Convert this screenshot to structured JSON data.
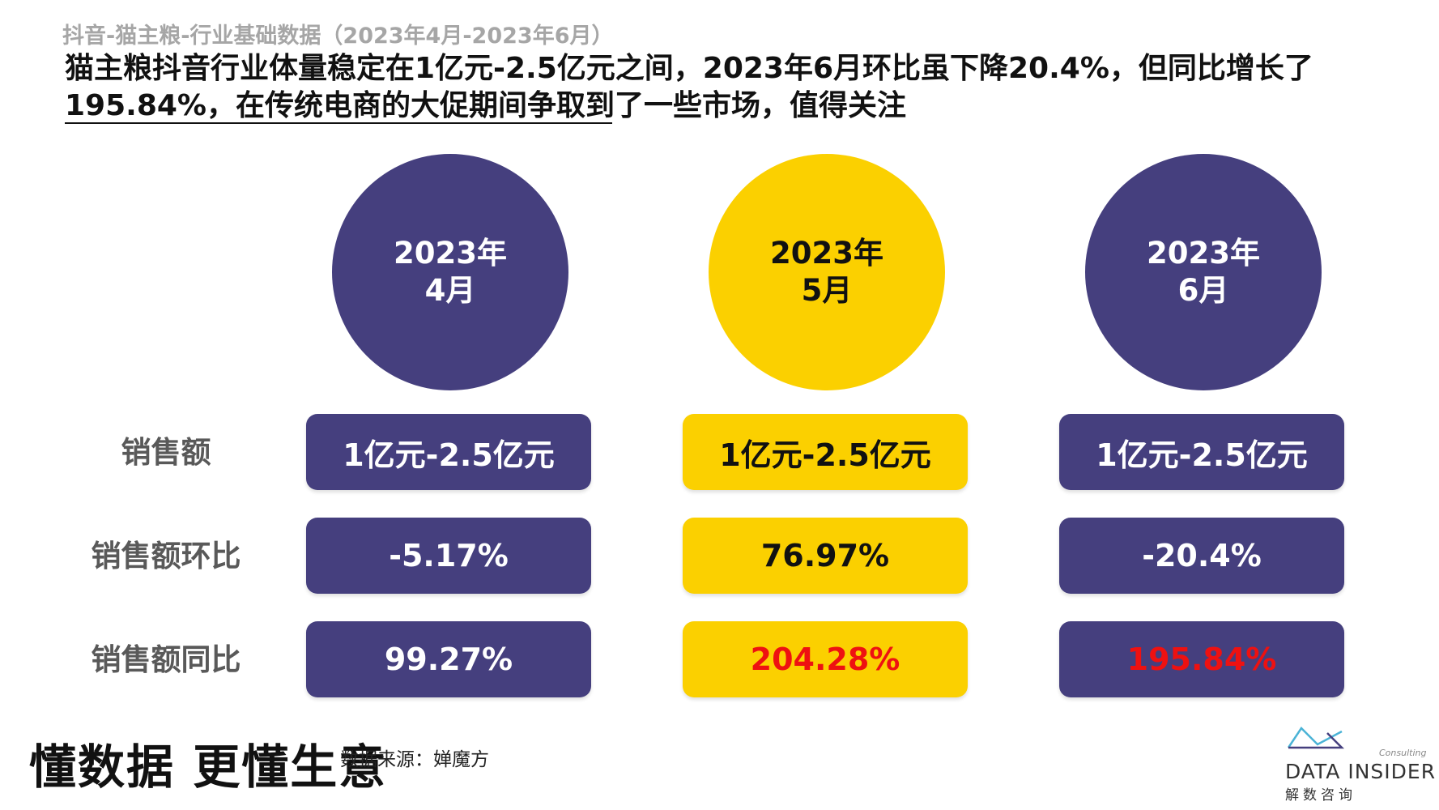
{
  "header": {
    "breadcrumb": "抖音-猫主粮-行业基础数据（2023年4月-2023年6月）",
    "headline": "猫主粮抖音行业体量稳定在1亿元-2.5亿元之间，2023年6月环比虽下降20.4%，但同比增长了195.84%，在传统电商的大促期间争取到了一些市场，值得关注"
  },
  "months": [
    {
      "year": "2023年",
      "month": "4月",
      "color": "purple"
    },
    {
      "year": "2023年",
      "month": "5月",
      "color": "yellow"
    },
    {
      "year": "2023年",
      "month": "6月",
      "color": "purple"
    }
  ],
  "row_labels": [
    "销售额",
    "销售额环比",
    "销售额同比"
  ],
  "table": [
    [
      "1亿元-2.5亿元",
      "1亿元-2.5亿元",
      "1亿元-2.5亿元"
    ],
    [
      "-5.17%",
      "76.97%",
      "-20.4%"
    ],
    [
      "99.27%",
      "204.28%",
      "195.84%"
    ]
  ],
  "colors": {
    "purple": "#453f7e",
    "yellow": "#fbd000",
    "highlight_red": "#ee1111"
  },
  "footer": {
    "slogan": "懂数据 更懂生意",
    "source": "数据来源：婵魔方",
    "logo_text": "DATA INSIDER",
    "logo_sub": "解数咨询",
    "logo_consulting": "Consulting"
  }
}
